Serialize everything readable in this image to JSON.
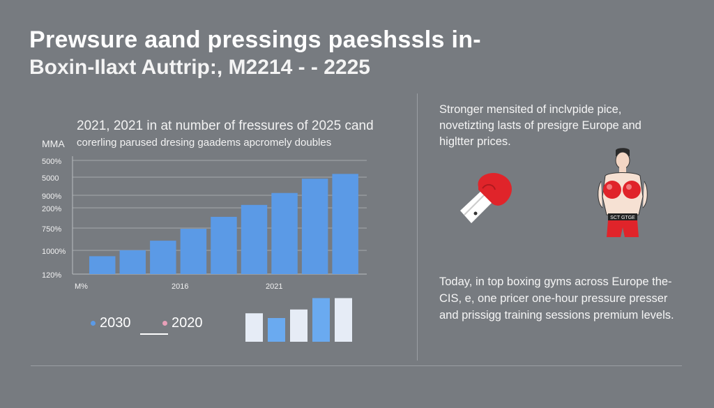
{
  "title": {
    "line1": "Prewsure aand pressings paeshssls in-",
    "line2": "Boxin-Ilaxt  Auttrip:, M2214  -  -  2225"
  },
  "chart_data": {
    "type": "bar",
    "title": "2021, 2021 in at number of fressures of 2025 cand",
    "subtitle": "corerling parused dresing gaadems apcromely doubles",
    "side_label": "MMA",
    "yticks": [
      "500%",
      "5000",
      "900%",
      "200%",
      "750%",
      "1000%",
      "120%"
    ],
    "xticks": [
      "M%",
      "2016",
      "2021"
    ],
    "ylim": [
      0,
      100
    ],
    "values": [
      15,
      20,
      28,
      38,
      48,
      58,
      68,
      80,
      84
    ],
    "color": "#5b9ae6",
    "legend": [
      {
        "label": "2030",
        "color": "#5b9ae6"
      },
      {
        "label": "2020",
        "color": "#e8a0b8"
      }
    ],
    "mini_bars": {
      "values": [
        60,
        50,
        68,
        92,
        92
      ],
      "colors": [
        "#e6ecf6",
        "#6aaaf0",
        "#e6ecf6",
        "#6aaaf0",
        "#e6ecf6"
      ]
    }
  },
  "right_panel": {
    "text1": "Stronger mensited of inclvpide pice, novetizting lasts of presigre Europe and higltter prices.",
    "text2": "Today, in top boxing gyms across Europe the-CIS, e, one pricer one-hour pressure presser and prissigg training sessions premium levels.",
    "glove_icon": "boxing-glove-icon",
    "boxer_icon": "boxer-icon",
    "colors": {
      "glove_red": "#e0242a",
      "glove_cuff": "#ffffff"
    }
  }
}
